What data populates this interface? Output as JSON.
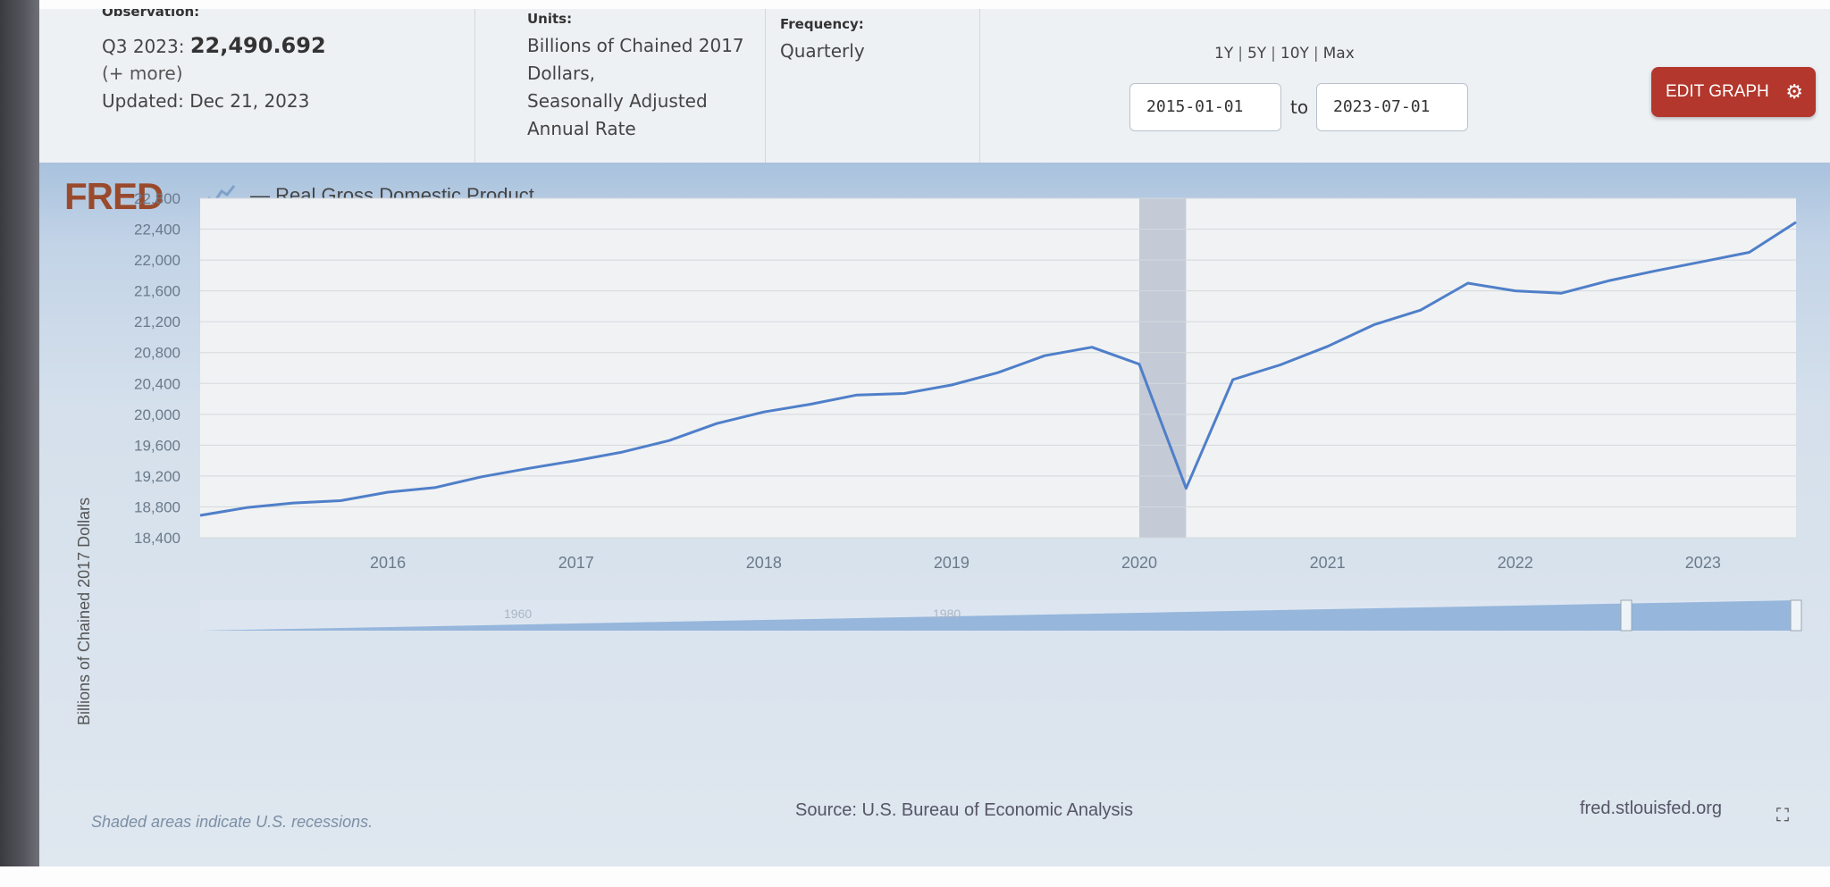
{
  "observation": {
    "label": "Observation:",
    "period": "Q3 2023:",
    "value": "22,490.692",
    "more": "(+ more)",
    "updated": "Updated: Dec 21, 2023"
  },
  "units": {
    "label": "Units:",
    "lines": [
      "Billions of Chained 2017",
      "Dollars,",
      "Seasonally Adjusted",
      "Annual Rate"
    ]
  },
  "frequency": {
    "label": "Frequency:",
    "value": "Quarterly"
  },
  "range_links": [
    "1Y",
    "5Y",
    "10Y",
    "Max"
  ],
  "date_range": {
    "start": "2015-01-01",
    "to_label": "to",
    "end": "2023-07-01"
  },
  "edit_graph_label": "EDIT GRAPH",
  "fred_logo": "FRED",
  "series_title": "— Real Gross Domestic Product",
  "footer": {
    "recession_note": "Shaded areas indicate U.S. recessions.",
    "source": "Source: U.S. Bureau of Economic Analysis",
    "url": "fred.stlouisfed.org"
  },
  "colors": {
    "line": "#4f7fc9",
    "grid": "#d4d9de",
    "plot_bg": "#f1f2f3",
    "recession": "#c4cad6",
    "edit_button": "#b3372c"
  },
  "chart_data": {
    "type": "line",
    "title": "Real Gross Domestic Product",
    "ylabel": "Billions of Chained 2017 Dollars",
    "xlabel": "",
    "ylim": [
      18400,
      22800
    ],
    "yticks": [
      "18,400",
      "18,800",
      "19,200",
      "19,600",
      "20,000",
      "20,400",
      "20,800",
      "21,200",
      "21,600",
      "22,000",
      "22,400",
      "22,800"
    ],
    "xticks": [
      "2016",
      "2017",
      "2018",
      "2019",
      "2020",
      "2021",
      "2022",
      "2023"
    ],
    "xlim": [
      "2015-01-01",
      "2023-07-01"
    ],
    "grid": true,
    "recessions": [
      {
        "start": "2020-01-01",
        "end": "2020-04-01"
      }
    ],
    "series": [
      {
        "name": "Real Gross Domestic Product",
        "x": [
          "2015-01-01",
          "2015-04-01",
          "2015-07-01",
          "2015-10-01",
          "2016-01-01",
          "2016-04-01",
          "2016-07-01",
          "2016-10-01",
          "2017-01-01",
          "2017-04-01",
          "2017-07-01",
          "2017-10-01",
          "2018-01-01",
          "2018-04-01",
          "2018-07-01",
          "2018-10-01",
          "2019-01-01",
          "2019-04-01",
          "2019-07-01",
          "2019-10-01",
          "2020-01-01",
          "2020-04-01",
          "2020-07-01",
          "2020-10-01",
          "2021-01-01",
          "2021-04-01",
          "2021-07-01",
          "2021-10-01",
          "2022-01-01",
          "2022-04-01",
          "2022-07-01",
          "2022-10-01",
          "2023-01-01",
          "2023-04-01",
          "2023-07-01"
        ],
        "values": [
          18690,
          18790,
          18850,
          18880,
          18990,
          19050,
          19190,
          19300,
          19400,
          19510,
          19660,
          19880,
          20030,
          20130,
          20250,
          20270,
          20380,
          20540,
          20760,
          20870,
          20650,
          19040,
          20450,
          20640,
          20880,
          21160,
          21350,
          21700,
          21600,
          21570,
          21730,
          21860,
          21980,
          22100,
          22490
        ]
      }
    ]
  },
  "minimap": {
    "labels": [
      "1960",
      "1980"
    ]
  }
}
